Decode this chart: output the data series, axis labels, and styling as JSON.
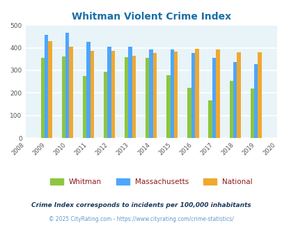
{
  "title": "Whitman Violent Crime Index",
  "years": [
    2009,
    2010,
    2011,
    2012,
    2013,
    2014,
    2015,
    2016,
    2017,
    2018,
    2019
  ],
  "whitman": [
    357,
    362,
    274,
    295,
    360,
    355,
    278,
    222,
    168,
    253,
    220
  ],
  "massachusetts": [
    457,
    466,
    427,
    405,
    406,
    394,
    394,
    376,
    356,
    337,
    328
  ],
  "national": [
    430,
    405,
    387,
    387,
    366,
    376,
    383,
    397,
    394,
    380,
    380
  ],
  "bar_colors": {
    "whitman": "#8dc63f",
    "massachusetts": "#4da6ff",
    "national": "#f0a830"
  },
  "xlim": [
    2008,
    2020
  ],
  "ylim": [
    0,
    500
  ],
  "yticks": [
    0,
    100,
    200,
    300,
    400,
    500
  ],
  "xticks": [
    2008,
    2009,
    2010,
    2011,
    2012,
    2013,
    2014,
    2015,
    2016,
    2017,
    2018,
    2019,
    2020
  ],
  "bg_color": "#e8f4f8",
  "grid_color": "#ffffff",
  "title_color": "#1a6fa8",
  "legend_labels": [
    "Whitman",
    "Massachusetts",
    "National"
  ],
  "legend_text_color": "#8b1a1a",
  "footnote1": "Crime Index corresponds to incidents per 100,000 inhabitants",
  "footnote2": "© 2025 CityRating.com - https://www.cityrating.com/crime-statistics/",
  "footnote1_color": "#1a3a5c",
  "footnote2_color": "#6699cc"
}
